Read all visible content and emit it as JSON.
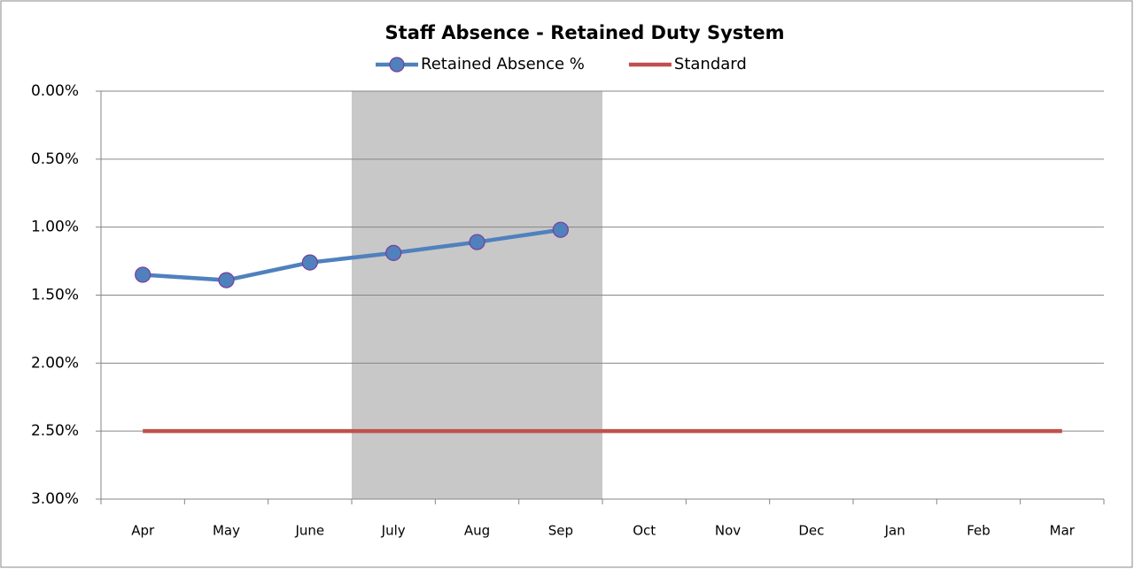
{
  "chart_data": {
    "type": "line",
    "title": "Staff Absence - Retained Duty System",
    "categories": [
      "Apr",
      "May",
      "June",
      "July",
      "Aug",
      "Sep",
      "Oct",
      "Nov",
      "Dec",
      "Jan",
      "Feb",
      "Mar"
    ],
    "series": [
      {
        "name": "Retained Absence %",
        "color": "#4f81bd",
        "marker": true,
        "values": [
          1.35,
          1.39,
          1.26,
          1.19,
          1.11,
          1.02,
          null,
          null,
          null,
          null,
          null,
          null
        ]
      },
      {
        "name": "Standard",
        "color": "#c0504d",
        "marker": false,
        "values": [
          2.5,
          2.5,
          2.5,
          2.5,
          2.5,
          2.5,
          2.5,
          2.5,
          2.5,
          2.5,
          2.5,
          2.5
        ]
      }
    ],
    "ylim": [
      0,
      3
    ],
    "y_reversed": true,
    "yticks": [
      {
        "value": 0,
        "label": "0.00%"
      },
      {
        "value": 0.5,
        "label": "0.50%"
      },
      {
        "value": 1,
        "label": "1.00%"
      },
      {
        "value": 1.5,
        "label": "1.50%"
      },
      {
        "value": 2,
        "label": "2.00%"
      },
      {
        "value": 2.5,
        "label": "2.50%"
      },
      {
        "value": 3,
        "label": "3.00%"
      }
    ],
    "grid": true,
    "legend": "top",
    "highlight": {
      "start": 3,
      "end": 5,
      "color": "#c8c8c8"
    }
  }
}
